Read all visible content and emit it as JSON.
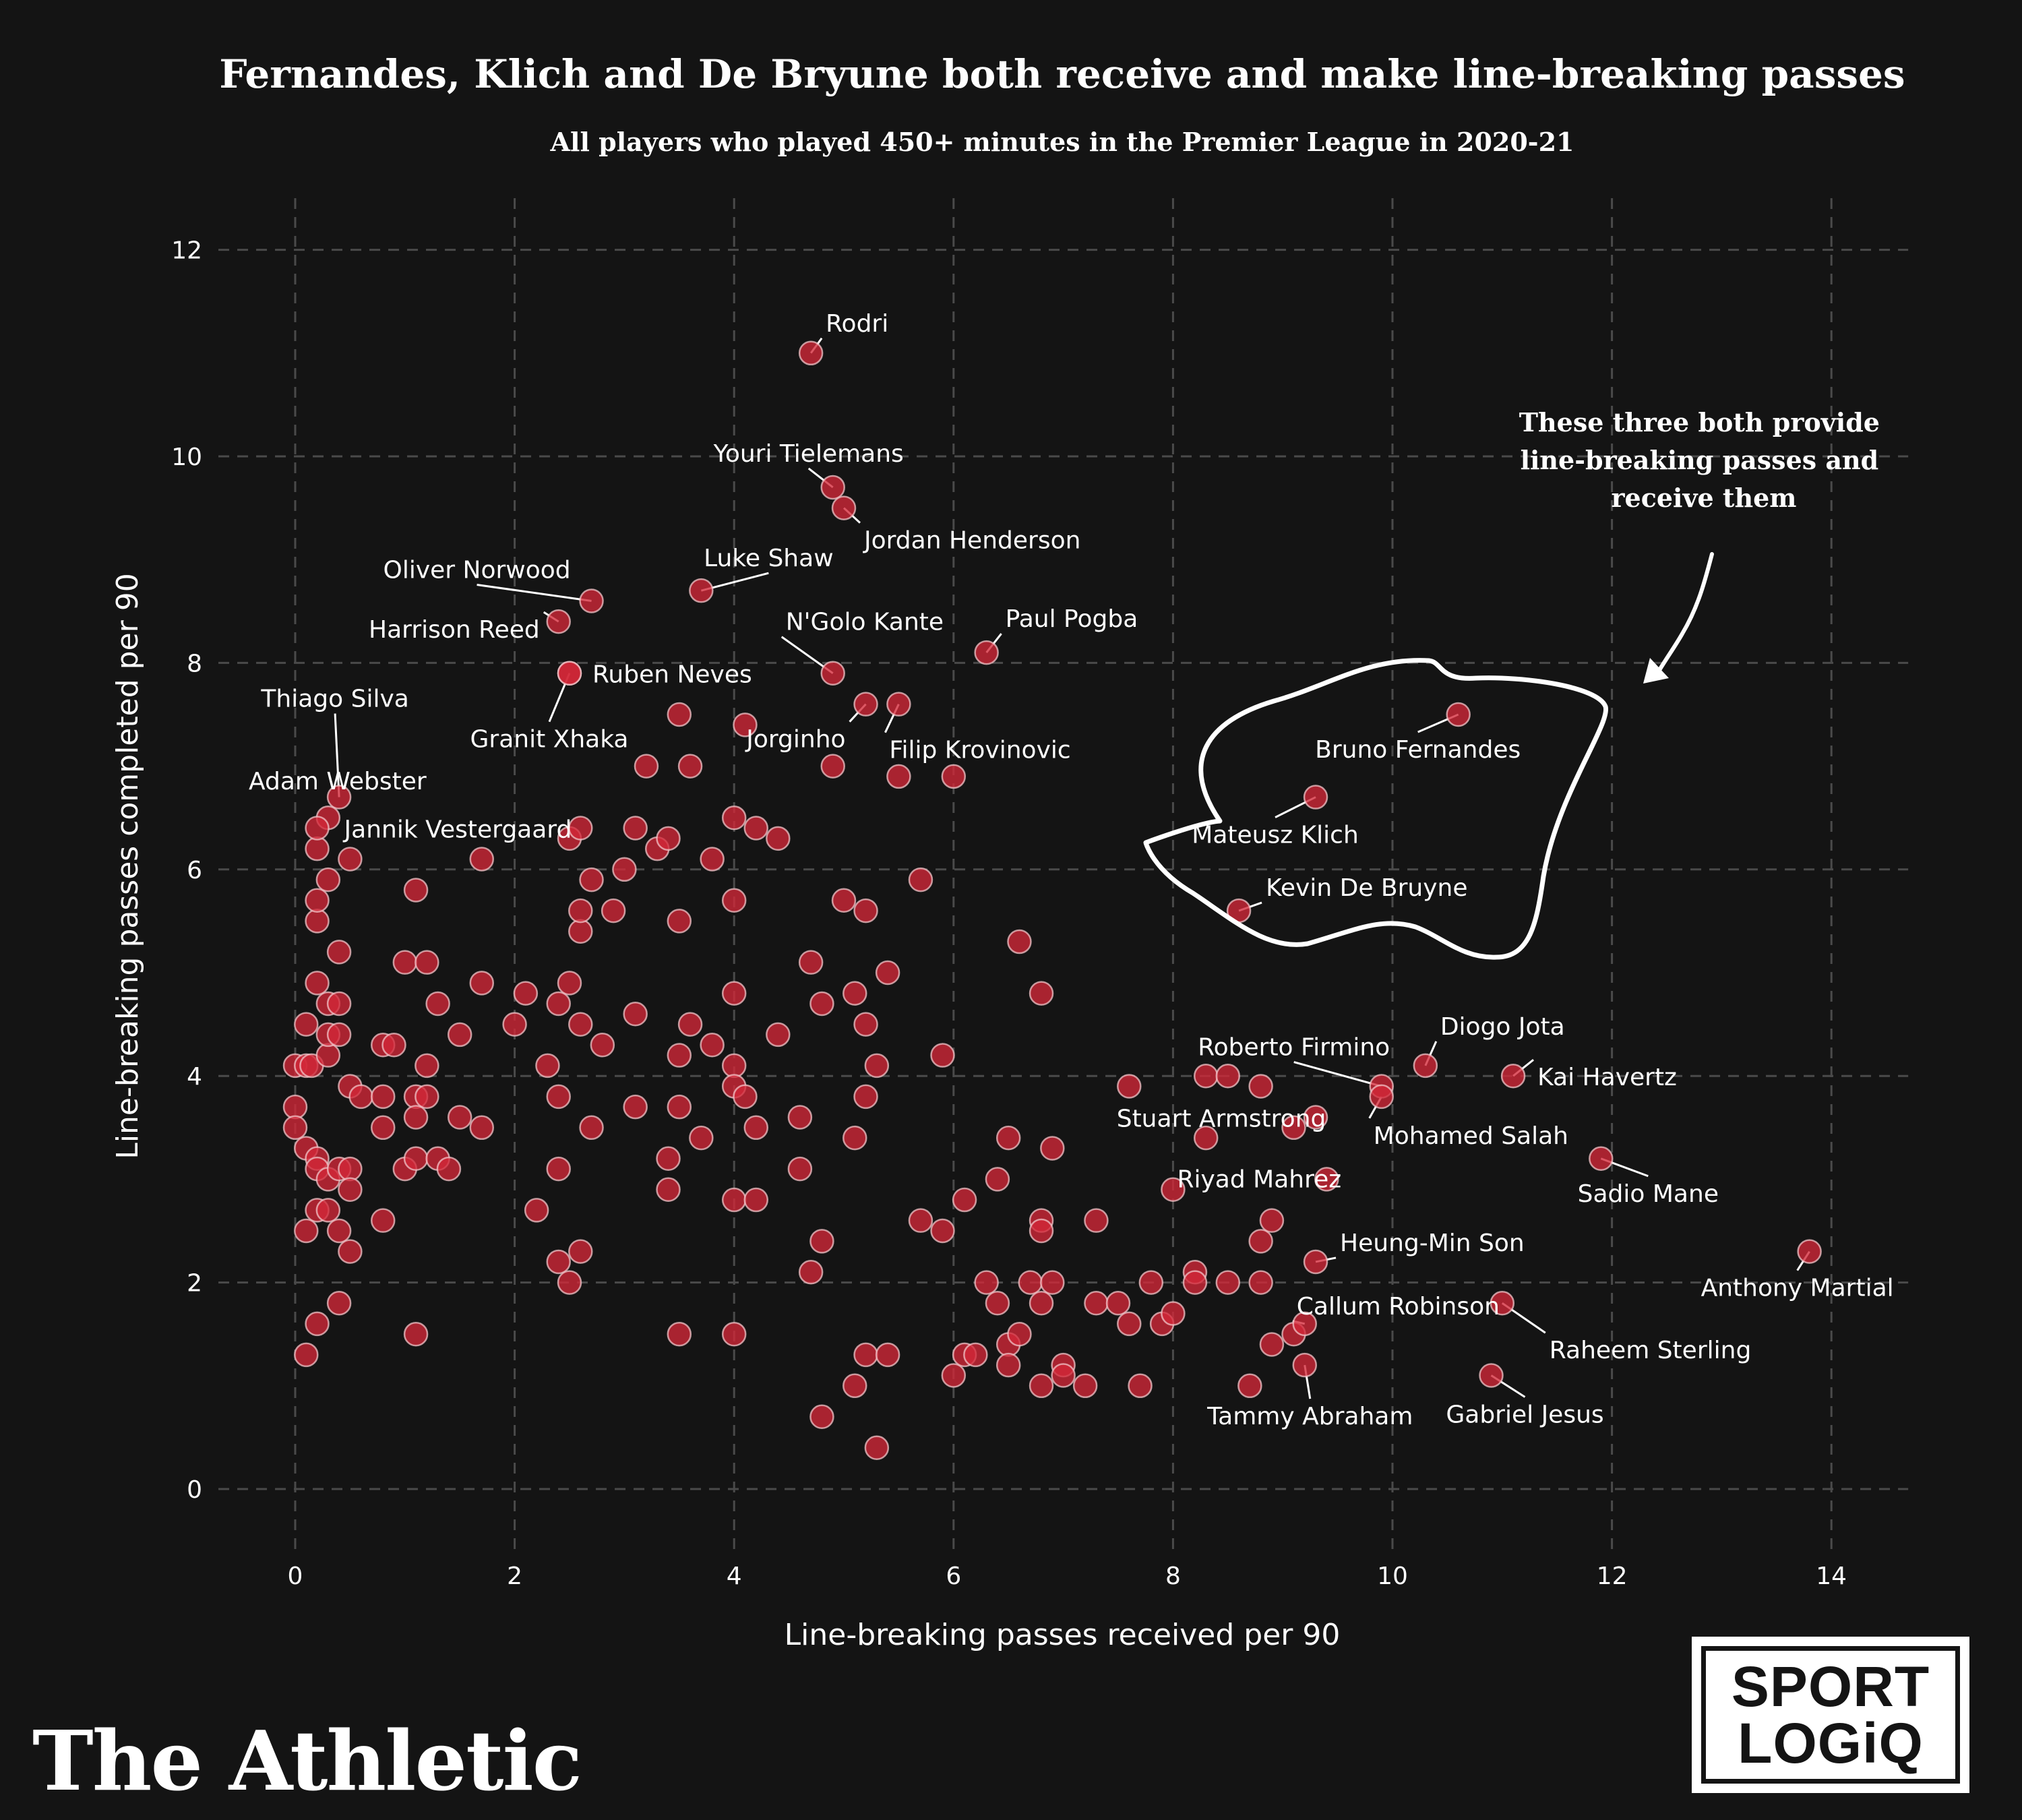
{
  "chart_data": {
    "type": "scatter",
    "title": "Fernandes, Klich and De Bryune both receive and make line-breaking passes",
    "subtitle": "All players who played 450+ minutes in the Premier League in 2020-21",
    "xlabel": "Line-breaking passes received per 90",
    "ylabel": "Line-breaking passes completed per 90",
    "xlim": [
      -0.7,
      14.7
    ],
    "ylim": [
      -0.6,
      12.5
    ],
    "xticks": [
      0,
      2,
      4,
      6,
      8,
      10,
      12,
      14
    ],
    "yticks": [
      0,
      2,
      4,
      6,
      8,
      10,
      12
    ],
    "grid": true,
    "annotation": "These three both provide line-breaking passes and receive them",
    "labeled_points": [
      {
        "name": "Rodri",
        "x": 4.7,
        "y": 11.0
      },
      {
        "name": "Youri Tielemans",
        "x": 4.9,
        "y": 9.7
      },
      {
        "name": "Jordan Henderson",
        "x": 5.0,
        "y": 9.5
      },
      {
        "name": "Oliver Norwood",
        "x": 2.7,
        "y": 8.6
      },
      {
        "name": "Luke Shaw",
        "x": 3.7,
        "y": 8.7
      },
      {
        "name": "Harrison Reed",
        "x": 2.4,
        "y": 8.4
      },
      {
        "name": "N'Golo Kante",
        "x": 4.9,
        "y": 7.9
      },
      {
        "name": "Paul Pogba",
        "x": 6.3,
        "y": 8.1
      },
      {
        "name": "Ruben Neves",
        "x": 2.5,
        "y": 7.9
      },
      {
        "name": "Granit Xhaka",
        "x": 2.5,
        "y": 7.9
      },
      {
        "name": "Jorginho",
        "x": 5.2,
        "y": 7.6
      },
      {
        "name": "Filip Krovinovic",
        "x": 5.5,
        "y": 7.6
      },
      {
        "name": "Thiago Silva",
        "x": 0.4,
        "y": 6.7
      },
      {
        "name": "Adam Webster",
        "x": 0.3,
        "y": 6.5
      },
      {
        "name": "Jannik Vestergaard",
        "x": 0.2,
        "y": 6.4
      },
      {
        "name": "Bruno Fernandes",
        "x": 10.6,
        "y": 7.5
      },
      {
        "name": "Mateusz Klich",
        "x": 9.3,
        "y": 6.7
      },
      {
        "name": "Kevin De Bruyne",
        "x": 8.6,
        "y": 5.6
      },
      {
        "name": "Diogo Jota",
        "x": 10.3,
        "y": 4.1
      },
      {
        "name": "Roberto Firmino",
        "x": 9.9,
        "y": 3.9
      },
      {
        "name": "Kai Havertz",
        "x": 11.1,
        "y": 4.0
      },
      {
        "name": "Mohamed Salah",
        "x": 9.9,
        "y": 3.8
      },
      {
        "name": "Stuart Armstrong",
        "x": 9.3,
        "y": 3.6
      },
      {
        "name": "Sadio Mane",
        "x": 11.9,
        "y": 3.2
      },
      {
        "name": "Riyad Mahrez",
        "x": 9.4,
        "y": 3.0
      },
      {
        "name": "Heung-Min Son",
        "x": 9.3,
        "y": 2.2
      },
      {
        "name": "Anthony Martial",
        "x": 13.8,
        "y": 2.3
      },
      {
        "name": "Callum Robinson",
        "x": 9.2,
        "y": 1.6
      },
      {
        "name": "Raheem Sterling",
        "x": 11.0,
        "y": 1.8
      },
      {
        "name": "Tammy Abraham",
        "x": 9.2,
        "y": 1.2
      },
      {
        "name": "Gabriel Jesus",
        "x": 10.9,
        "y": 1.1
      }
    ],
    "points": [
      [
        0.0,
        4.1
      ],
      [
        0.1,
        4.1
      ],
      [
        0.15,
        4.1
      ],
      [
        0.3,
        4.2
      ],
      [
        0.0,
        3.7
      ],
      [
        0.0,
        3.5
      ],
      [
        0.1,
        3.3
      ],
      [
        0.2,
        3.2
      ],
      [
        0.2,
        3.1
      ],
      [
        0.3,
        3.0
      ],
      [
        0.4,
        3.1
      ],
      [
        0.5,
        3.1
      ],
      [
        0.5,
        2.9
      ],
      [
        0.2,
        2.7
      ],
      [
        0.3,
        2.7
      ],
      [
        0.1,
        2.5
      ],
      [
        0.4,
        2.5
      ],
      [
        0.5,
        2.3
      ],
      [
        0.4,
        1.8
      ],
      [
        0.2,
        1.6
      ],
      [
        0.1,
        1.3
      ],
      [
        0.1,
        4.5
      ],
      [
        0.3,
        4.7
      ],
      [
        0.4,
        4.7
      ],
      [
        0.3,
        4.4
      ],
      [
        0.4,
        4.4
      ],
      [
        0.2,
        4.9
      ],
      [
        0.4,
        5.2
      ],
      [
        0.2,
        5.5
      ],
      [
        0.2,
        5.7
      ],
      [
        0.3,
        5.9
      ],
      [
        0.2,
        6.2
      ],
      [
        0.5,
        6.1
      ],
      [
        0.5,
        3.9
      ],
      [
        0.6,
        3.8
      ],
      [
        0.8,
        3.8
      ],
      [
        0.8,
        3.5
      ],
      [
        0.8,
        4.3
      ],
      [
        0.9,
        4.3
      ],
      [
        0.8,
        2.6
      ],
      [
        1.0,
        5.1
      ],
      [
        1.2,
        5.1
      ],
      [
        1.1,
        5.8
      ],
      [
        1.2,
        4.1
      ],
      [
        1.1,
        3.8
      ],
      [
        1.2,
        3.8
      ],
      [
        1.1,
        3.6
      ],
      [
        1.0,
        3.1
      ],
      [
        1.1,
        3.2
      ],
      [
        1.3,
        3.2
      ],
      [
        1.4,
        3.1
      ],
      [
        1.3,
        4.7
      ],
      [
        1.5,
        4.4
      ],
      [
        1.5,
        3.6
      ],
      [
        1.7,
        3.5
      ],
      [
        1.7,
        4.9
      ],
      [
        1.7,
        6.1
      ],
      [
        1.1,
        1.5
      ],
      [
        2.0,
        4.5
      ],
      [
        2.1,
        4.8
      ],
      [
        2.3,
        4.1
      ],
      [
        2.4,
        4.7
      ],
      [
        2.4,
        3.8
      ],
      [
        2.4,
        3.1
      ],
      [
        2.2,
        2.7
      ],
      [
        2.4,
        2.2
      ],
      [
        2.6,
        2.3
      ],
      [
        2.5,
        2.0
      ],
      [
        2.5,
        4.9
      ],
      [
        2.6,
        4.5
      ],
      [
        2.8,
        4.3
      ],
      [
        2.6,
        5.4
      ],
      [
        2.6,
        5.6
      ],
      [
        2.7,
        5.9
      ],
      [
        2.5,
        6.3
      ],
      [
        2.6,
        6.4
      ],
      [
        2.9,
        5.6
      ],
      [
        3.0,
        6.0
      ],
      [
        3.1,
        6.4
      ],
      [
        3.1,
        4.6
      ],
      [
        3.1,
        3.7
      ],
      [
        2.7,
        3.5
      ],
      [
        3.2,
        7.0
      ],
      [
        3.3,
        6.2
      ],
      [
        3.4,
        6.3
      ],
      [
        3.5,
        5.5
      ],
      [
        3.5,
        4.2
      ],
      [
        3.5,
        3.7
      ],
      [
        3.4,
        3.2
      ],
      [
        3.4,
        2.9
      ],
      [
        3.5,
        1.5
      ],
      [
        3.6,
        4.5
      ],
      [
        3.7,
        3.4
      ],
      [
        3.8,
        4.3
      ],
      [
        3.8,
        6.1
      ],
      [
        3.6,
        7.0
      ],
      [
        3.5,
        7.5
      ],
      [
        4.0,
        6.5
      ],
      [
        4.1,
        7.4
      ],
      [
        4.2,
        6.4
      ],
      [
        4.4,
        6.3
      ],
      [
        4.0,
        5.7
      ],
      [
        4.0,
        4.8
      ],
      [
        4.0,
        4.1
      ],
      [
        4.0,
        3.9
      ],
      [
        4.1,
        3.8
      ],
      [
        4.2,
        3.5
      ],
      [
        4.0,
        2.8
      ],
      [
        4.2,
        2.8
      ],
      [
        4.0,
        1.5
      ],
      [
        4.4,
        4.4
      ],
      [
        4.6,
        3.6
      ],
      [
        4.6,
        3.1
      ],
      [
        4.7,
        5.1
      ],
      [
        4.8,
        4.7
      ],
      [
        4.7,
        2.1
      ],
      [
        4.8,
        2.4
      ],
      [
        4.8,
        0.7
      ],
      [
        4.9,
        7.0
      ],
      [
        5.0,
        5.7
      ],
      [
        5.2,
        5.6
      ],
      [
        5.1,
        4.8
      ],
      [
        5.2,
        4.5
      ],
      [
        5.3,
        4.1
      ],
      [
        5.2,
        3.8
      ],
      [
        5.1,
        3.4
      ],
      [
        5.4,
        5.0
      ],
      [
        5.2,
        1.3
      ],
      [
        5.4,
        1.3
      ],
      [
        5.1,
        1.0
      ],
      [
        5.3,
        0.4
      ],
      [
        5.5,
        6.9
      ],
      [
        5.7,
        5.9
      ],
      [
        6.0,
        6.9
      ],
      [
        5.9,
        4.2
      ],
      [
        5.7,
        2.6
      ],
      [
        5.9,
        2.5
      ],
      [
        6.1,
        2.8
      ],
      [
        6.0,
        1.1
      ],
      [
        6.1,
        1.3
      ],
      [
        6.2,
        1.3
      ],
      [
        6.3,
        2.0
      ],
      [
        6.4,
        1.8
      ],
      [
        6.4,
        3.0
      ],
      [
        6.5,
        3.4
      ],
      [
        6.6,
        5.3
      ],
      [
        6.8,
        4.8
      ],
      [
        6.9,
        3.3
      ],
      [
        6.5,
        1.4
      ],
      [
        6.6,
        1.5
      ],
      [
        6.5,
        1.2
      ],
      [
        6.7,
        2.0
      ],
      [
        6.8,
        2.6
      ],
      [
        6.8,
        2.5
      ],
      [
        6.9,
        2.0
      ],
      [
        6.8,
        1.8
      ],
      [
        6.8,
        1.0
      ],
      [
        7.0,
        1.2
      ],
      [
        7.0,
        1.1
      ],
      [
        7.2,
        1.0
      ],
      [
        7.3,
        2.6
      ],
      [
        7.3,
        1.8
      ],
      [
        7.5,
        1.8
      ],
      [
        7.6,
        1.6
      ],
      [
        7.7,
        1.0
      ],
      [
        7.6,
        3.9
      ],
      [
        7.8,
        2.0
      ],
      [
        7.9,
        1.6
      ],
      [
        8.0,
        1.7
      ],
      [
        8.0,
        2.9
      ],
      [
        8.2,
        2.1
      ],
      [
        8.2,
        2.0
      ],
      [
        8.5,
        2.0
      ],
      [
        8.3,
        3.4
      ],
      [
        8.3,
        4.0
      ],
      [
        8.5,
        4.0
      ],
      [
        8.8,
        3.9
      ],
      [
        8.8,
        2.4
      ],
      [
        8.9,
        2.6
      ],
      [
        8.8,
        2.0
      ],
      [
        8.9,
        1.4
      ],
      [
        8.7,
        1.0
      ],
      [
        9.1,
        1.5
      ],
      [
        9.1,
        3.5
      ]
    ]
  },
  "brand": {
    "name": "The Athletic",
    "logo_line1": "SPORT",
    "logo_line2": "LOGiQ"
  },
  "colors": {
    "background": "#141414",
    "dot_fill": "#d42838",
    "dot_stroke": "#f1c4c8",
    "grid": "#4a4a4a",
    "text": "#ffffff"
  }
}
